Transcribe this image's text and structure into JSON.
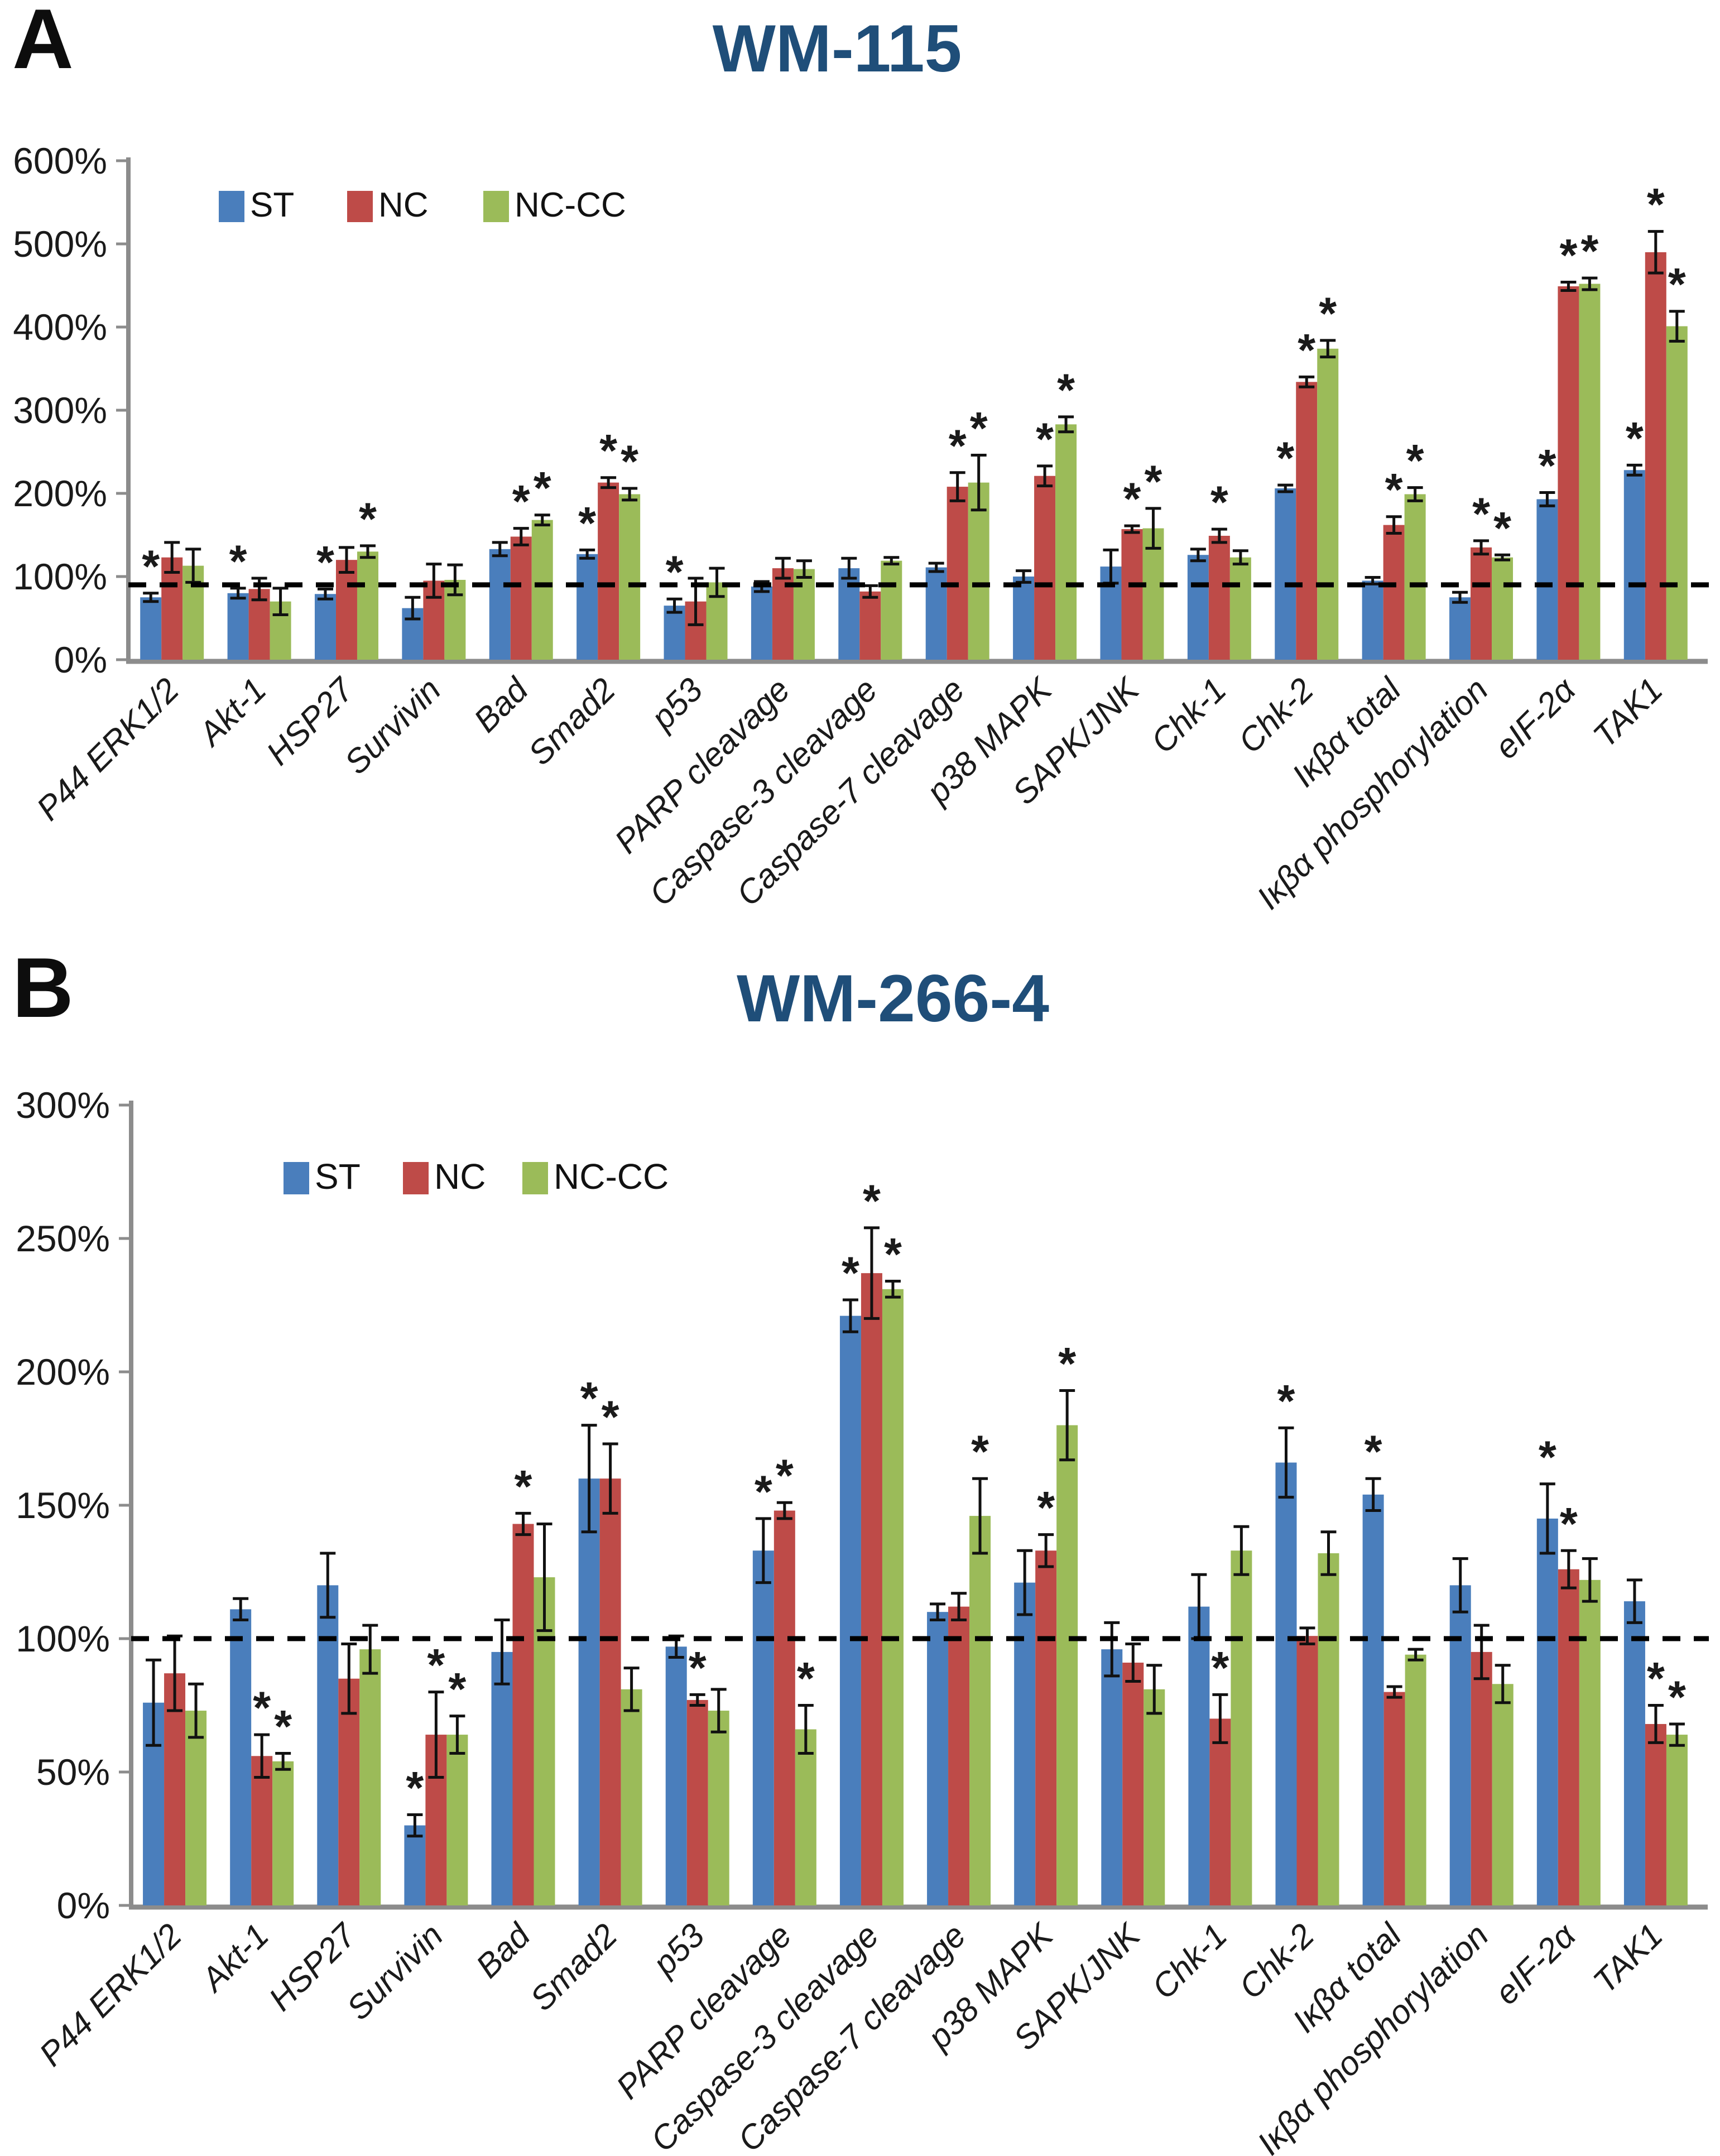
{
  "chart_data": [
    {
      "type": "bar",
      "label": "A",
      "title": "WM-115",
      "title_color": "#1F4E79",
      "axis_color": "#8c8c8c",
      "text_color": "#1a1a1a",
      "error_bar_color": "#111111",
      "reference_line_color": "#000000",
      "legend_position": "top-left-inside",
      "legend": [
        "ST",
        "NC",
        "NC-CC"
      ],
      "series_colors": [
        "#4A7EBC",
        "#BE4B48",
        "#9BBB59"
      ],
      "ylabel": "",
      "xlabel": "",
      "ylim": [
        0,
        600
      ],
      "y_tick_step": 100,
      "y_tick_labels": [
        "0%",
        "100%",
        "200%",
        "300%",
        "400%",
        "500%",
        "600%"
      ],
      "grid": false,
      "reference_line_pct": 90,
      "significance_symbol": "*",
      "categories": [
        "P44 ERK1/2",
        "Akt-1",
        "HSP27",
        "Survivin",
        "Bad",
        "Smad2",
        "p53",
        "PARP cleavage",
        "Caspase-3 cleavage",
        "Caspase-7 cleavage",
        "p38 MAPK",
        "SAPK/JNK",
        "Chk-1",
        "Chk-2",
        "Iκβα total",
        "Iκβα phosphorylation",
        "eIF-2α",
        "TAK1"
      ],
      "series": [
        {
          "name": "ST",
          "values": [
            75,
            80,
            79,
            62,
            133,
            127,
            65,
            88,
            110,
            111,
            100,
            112,
            126,
            206,
            95,
            75,
            193,
            228
          ],
          "errors": [
            5,
            6,
            6,
            13,
            8,
            5,
            8,
            6,
            12,
            5,
            7,
            20,
            7,
            4,
            4,
            6,
            8,
            6
          ],
          "sig": [
            "*",
            "*",
            "*",
            "",
            "",
            "*",
            "*",
            "",
            "",
            "",
            "",
            "",
            "",
            "*",
            "",
            "",
            "*",
            "*"
          ]
        },
        {
          "name": "NC",
          "values": [
            123,
            85,
            120,
            95,
            148,
            213,
            70,
            110,
            82,
            208,
            221,
            157,
            149,
            334,
            162,
            135,
            449,
            490
          ],
          "errors": [
            18,
            13,
            15,
            20,
            10,
            6,
            28,
            12,
            7,
            17,
            12,
            4,
            8,
            6,
            10,
            8,
            5,
            25
          ],
          "sig": [
            "",
            "",
            "",
            "",
            "*",
            "*",
            "",
            "",
            "",
            "*",
            "*",
            "*",
            "*",
            "*",
            "*",
            "*",
            "*",
            "*"
          ]
        },
        {
          "name": "NC-CC",
          "values": [
            113,
            70,
            130,
            96,
            168,
            199,
            93,
            109,
            119,
            213,
            283,
            158,
            123,
            374,
            199,
            123,
            452,
            401
          ],
          "errors": [
            20,
            16,
            7,
            18,
            6,
            7,
            17,
            10,
            4,
            33,
            9,
            24,
            8,
            10,
            8,
            3,
            7,
            18
          ],
          "sig": [
            "",
            "",
            "*",
            "",
            "*",
            "*",
            "",
            "",
            "",
            "*",
            "*",
            "*",
            "",
            "*",
            "*",
            "*",
            "*",
            "*"
          ]
        }
      ]
    },
    {
      "type": "bar",
      "label": "B",
      "title": "WM-266-4",
      "title_color": "#1F4E79",
      "axis_color": "#8c8c8c",
      "text_color": "#1a1a1a",
      "error_bar_color": "#111111",
      "reference_line_color": "#000000",
      "legend_position": "top-left-inside",
      "legend": [
        "ST",
        "NC",
        "NC-CC"
      ],
      "series_colors": [
        "#4A7EBC",
        "#BE4B48",
        "#9BBB59"
      ],
      "ylabel": "",
      "xlabel": "",
      "ylim": [
        0,
        300
      ],
      "y_tick_step": 50,
      "y_tick_labels": [
        "0%",
        "50%",
        "100%",
        "150%",
        "200%",
        "250%",
        "300%"
      ],
      "grid": false,
      "reference_line_pct": 100,
      "significance_symbol": "*",
      "categories": [
        "P44 ERK1/2",
        "Akt-1",
        "HSP27",
        "Survivin",
        "Bad",
        "Smad2",
        "p53",
        "PARP cleavage",
        "Caspase-3 cleavage",
        "Caspase-7 cleavage",
        "p38 MAPK",
        "SAPK/JNK",
        "Chk-1",
        "Chk-2",
        "Iκβα total",
        "Iκβα phosphorylation",
        "eIF-2α",
        "TAK1"
      ],
      "series": [
        {
          "name": "ST",
          "values": [
            76,
            111,
            120,
            30,
            95,
            160,
            97,
            133,
            221,
            110,
            121,
            96,
            112,
            166,
            154,
            120,
            145,
            114
          ],
          "errors": [
            16,
            4,
            12,
            4,
            12,
            20,
            4,
            12,
            6,
            3,
            12,
            10,
            12,
            13,
            6,
            10,
            13,
            8
          ],
          "sig": [
            "",
            "",
            "",
            "*",
            "",
            "*",
            "",
            "*",
            "*",
            "",
            "",
            "",
            "",
            "*",
            "*",
            "",
            "*",
            ""
          ]
        },
        {
          "name": "NC",
          "values": [
            87,
            56,
            85,
            64,
            143,
            160,
            77,
            148,
            237,
            112,
            133,
            91,
            70,
            101,
            80,
            95,
            126,
            68
          ],
          "errors": [
            14,
            8,
            13,
            16,
            4,
            13,
            2,
            3,
            17,
            5,
            6,
            7,
            9,
            3,
            2,
            10,
            7,
            7
          ],
          "sig": [
            "",
            "*",
            "",
            "*",
            "*",
            "*",
            "*",
            "*",
            "*",
            "",
            "*",
            "",
            "*",
            "",
            "",
            "",
            "*",
            "*"
          ]
        },
        {
          "name": "NC-CC",
          "values": [
            73,
            54,
            96,
            64,
            123,
            81,
            73,
            66,
            231,
            146,
            180,
            81,
            133,
            132,
            94,
            83,
            122,
            64
          ],
          "errors": [
            10,
            3,
            9,
            7,
            20,
            8,
            8,
            9,
            3,
            14,
            13,
            9,
            9,
            8,
            2,
            7,
            8,
            4
          ],
          "sig": [
            "",
            "*",
            "",
            "*",
            "",
            "",
            "",
            "*",
            "*",
            "*",
            "*",
            "",
            "",
            "",
            "",
            "",
            "",
            "*"
          ]
        }
      ]
    }
  ]
}
